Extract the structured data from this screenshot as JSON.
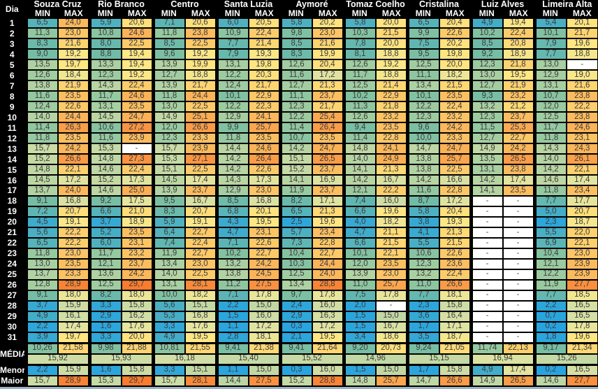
{
  "header": {
    "day_col": "Dia",
    "min_label": "MIN",
    "max_label": "MAX"
  },
  "locations": [
    "Souza Cruz",
    "Rio Branco",
    "Centro",
    "Santa Luzia",
    "Aymoré",
    "Tomaz Coelho",
    "Cristalina",
    "Luiz Alves",
    "Limeira Alta"
  ],
  "days": [
    "1",
    "2",
    "3",
    "4",
    "5",
    "6",
    "7",
    "8",
    "9",
    "10",
    "11",
    "12",
    "13",
    "14",
    "15",
    "16",
    "17",
    "18",
    "19",
    "20",
    "21",
    "22",
    "23",
    "24",
    "25",
    "26",
    "27",
    "28",
    "29",
    "30",
    "31"
  ],
  "rows": [
    [
      [
        "6,5",
        "24,0"
      ],
      [
        "5,9",
        "20,6"
      ],
      [
        "7,1",
        "20,6"
      ],
      [
        "6,0",
        "20,5"
      ],
      [
        "5,8",
        "20,2"
      ],
      [
        "5,8",
        "20,0"
      ],
      [
        "6,5",
        "20,4"
      ],
      [
        "4,9",
        "19,4"
      ],
      [
        "5,4",
        "20,1"
      ]
    ],
    [
      [
        "11,3",
        "23,0"
      ],
      [
        "10,8",
        "24,6"
      ],
      [
        "11,8",
        "23,8"
      ],
      [
        "10,9",
        "22,4"
      ],
      [
        "9,8",
        "23,0"
      ],
      [
        "10,3",
        "21,5"
      ],
      [
        "9,9",
        "22,6"
      ],
      [
        "10,2",
        "22,4"
      ],
      [
        "10,1",
        "21,7"
      ]
    ],
    [
      [
        "8,3",
        "21,6"
      ],
      [
        "8,0",
        "22,5"
      ],
      [
        "8,5",
        "22,5"
      ],
      [
        "7,7",
        "21,4"
      ],
      [
        "8,5",
        "21,6"
      ],
      [
        "7,8",
        "20,0"
      ],
      [
        "7,5",
        "20,2"
      ],
      [
        "8,5",
        "20,8"
      ],
      [
        "7,9",
        "19,6"
      ]
    ],
    [
      [
        "9,0",
        "19,2"
      ],
      [
        "8,8",
        "19,4"
      ],
      [
        "9,6",
        "19,2"
      ],
      [
        "7,9",
        "19,3"
      ],
      [
        "8,3",
        "19,9"
      ],
      [
        "8,1",
        "18,8"
      ],
      [
        "9,5",
        "19,8"
      ],
      [
        "9,2",
        "18,9"
      ],
      [
        "7,7",
        "18,8"
      ]
    ],
    [
      [
        "13,5",
        "19,7"
      ],
      [
        "13,3",
        "19,4"
      ],
      [
        "13,9",
        "19,9"
      ],
      [
        "13,1",
        "19,8"
      ],
      [
        "12,6",
        "20,4"
      ],
      [
        "12,6",
        "19,2"
      ],
      [
        "12,5",
        "20,0"
      ],
      [
        "12,3",
        "21,8"
      ],
      [
        "13,0",
        "-"
      ]
    ],
    [
      [
        "12,6",
        "18,4"
      ],
      [
        "12,3",
        "19,2"
      ],
      [
        "12,7",
        "18,8"
      ],
      [
        "12,2",
        "20,3"
      ],
      [
        "11,6",
        "17,2"
      ],
      [
        "11,7",
        "18,8"
      ],
      [
        "11,1",
        "18,2"
      ],
      [
        "13,0",
        "19,5"
      ],
      [
        "12,9",
        "19,0"
      ]
    ],
    [
      [
        "13,8",
        "21,9"
      ],
      [
        "14,3",
        "22,4"
      ],
      [
        "13,9",
        "21,7"
      ],
      [
        "12,4",
        "21,7"
      ],
      [
        "12,7",
        "21,3"
      ],
      [
        "12,5",
        "21,4"
      ],
      [
        "13,4",
        "21,5"
      ],
      [
        "12,7",
        "21,9"
      ],
      [
        "13,1",
        "21,6"
      ]
    ],
    [
      [
        "11,6",
        "23,5"
      ],
      [
        "11,7",
        "24,6"
      ],
      [
        "11,8",
        "24,4"
      ],
      [
        "10,1",
        "22,9"
      ],
      [
        "11,1",
        "23,7"
      ],
      [
        "10,2",
        "22,9"
      ],
      [
        "10,1",
        "23,5"
      ],
      [
        "9,3",
        "23,2"
      ],
      [
        "10,7",
        "23,8"
      ]
    ],
    [
      [
        "12,4",
        "22,6"
      ],
      [
        "13,1",
        "23,5"
      ],
      [
        "13,0",
        "22,5"
      ],
      [
        "12,2",
        "22,3"
      ],
      [
        "12,3",
        "21,7"
      ],
      [
        "11,3",
        "21,8"
      ],
      [
        "12,2",
        "22,4"
      ],
      [
        "13,2",
        "21,2"
      ],
      [
        "12,0",
        "22,2"
      ]
    ],
    [
      [
        "14,0",
        "24,4"
      ],
      [
        "14,5",
        "24,7"
      ],
      [
        "14,9",
        "25,1"
      ],
      [
        "12,9",
        "24,1"
      ],
      [
        "12,2",
        "25,4"
      ],
      [
        "12,6",
        "23,2"
      ],
      [
        "12,3",
        "23,2"
      ],
      [
        "12,3",
        "23,7"
      ],
      [
        "12,5",
        "23,8"
      ]
    ],
    [
      [
        "11,4",
        "26,3"
      ],
      [
        "10,6",
        "27,2"
      ],
      [
        "12,0",
        "26,6"
      ],
      [
        "9,9",
        "25,7"
      ],
      [
        "11,4",
        "26,4"
      ],
      [
        "9,4",
        "23,5"
      ],
      [
        "9,6",
        "24,2"
      ],
      [
        "11,5",
        "25,3"
      ],
      [
        "11,7",
        "24,6"
      ]
    ],
    [
      [
        "11,8",
        "23,5"
      ],
      [
        "11,6",
        "23,9"
      ],
      [
        "12,3",
        "23,3"
      ],
      [
        "11,8",
        "23,5"
      ],
      [
        "10,7",
        "23,5"
      ],
      [
        "11,4",
        "22,8"
      ],
      [
        "10,0",
        "23,3"
      ],
      [
        "12,7",
        "22,7"
      ],
      [
        "11,8",
        "23,1"
      ]
    ],
    [
      [
        "15,7",
        "24,2"
      ],
      [
        "15,3",
        "-"
      ],
      [
        "15,7",
        "23,9"
      ],
      [
        "14,4",
        "24,6"
      ],
      [
        "14,2",
        "24,7"
      ],
      [
        "14,8",
        "24,1"
      ],
      [
        "14,7",
        "24,7"
      ],
      [
        "14,9",
        "24,2"
      ],
      [
        "14,3",
        "24,3"
      ]
    ],
    [
      [
        "15,2",
        "26,6"
      ],
      [
        "14,8",
        "27,3"
      ],
      [
        "15,3",
        "27,1"
      ],
      [
        "14,2",
        "26,4"
      ],
      [
        "15,1",
        "26,5"
      ],
      [
        "14,0",
        "24,9"
      ],
      [
        "13,8",
        "25,7"
      ],
      [
        "13,5",
        "26,5"
      ],
      [
        "14,0",
        "26,1"
      ]
    ],
    [
      [
        "14,8",
        "22,1"
      ],
      [
        "14,6",
        "22,4"
      ],
      [
        "15,1",
        "22,5"
      ],
      [
        "14,2",
        "22,6"
      ],
      [
        "15,2",
        "23,7"
      ],
      [
        "14,1",
        "21,3"
      ],
      [
        "13,8",
        "22,5"
      ],
      [
        "13,1",
        "23,8"
      ],
      [
        "14,2",
        "22,1"
      ]
    ],
    [
      [
        "14,5",
        "17,2"
      ],
      [
        "15,2",
        "17,3"
      ],
      [
        "14,5",
        "17,4"
      ],
      [
        "14,3",
        "17,3"
      ],
      [
        "14,1",
        "16,9"
      ],
      [
        "14,2",
        "16,7"
      ],
      [
        "14,2",
        "16,6"
      ],
      [
        "14,2",
        "17,4"
      ],
      [
        "14,6",
        "17,4"
      ]
    ],
    [
      [
        "13,7",
        "24,0"
      ],
      [
        "14,6",
        "25,0"
      ],
      [
        "13,9",
        "23,7"
      ],
      [
        "12,9",
        "23,0"
      ],
      [
        "11,9",
        "23,7"
      ],
      [
        "12,1",
        "22,2"
      ],
      [
        "11,6",
        "22,8"
      ],
      [
        "14,1",
        "23,5"
      ],
      [
        "11,8",
        "23,4"
      ]
    ],
    [
      [
        "9,1",
        "16,8"
      ],
      [
        "9,2",
        "17,5"
      ],
      [
        "9,5",
        "16,7"
      ],
      [
        "8,5",
        "16,8"
      ],
      [
        "8,2",
        "17,1"
      ],
      [
        "7,4",
        "16,0"
      ],
      [
        "8,7",
        "17,2"
      ],
      [
        "-",
        "-"
      ],
      [
        "7,7",
        "17,7"
      ]
    ],
    [
      [
        "7,2",
        "20,7"
      ],
      [
        "6,6",
        "21,0"
      ],
      [
        "8,3",
        "20,7"
      ],
      [
        "6,8",
        "20,1"
      ],
      [
        "6,5",
        "21,3"
      ],
      [
        "6,6",
        "19,6"
      ],
      [
        "5,8",
        "20,4"
      ],
      [
        "-",
        "-"
      ],
      [
        "5,0",
        "20,7"
      ]
    ],
    [
      [
        "4,5",
        "19,1"
      ],
      [
        "3,7",
        "18,9"
      ],
      [
        "5,9",
        "19,1"
      ],
      [
        "4,3",
        "19,5"
      ],
      [
        "2,5",
        "19,6"
      ],
      [
        "4,0",
        "18,2"
      ],
      [
        "3,8",
        "19,3"
      ],
      [
        "-",
        "-"
      ],
      [
        "2,3",
        "18,7"
      ]
    ],
    [
      [
        "5,6",
        "22,2"
      ],
      [
        "5,2",
        "23,5"
      ],
      [
        "6,4",
        "22,7"
      ],
      [
        "4,7",
        "23,1"
      ],
      [
        "5,7",
        "23,4"
      ],
      [
        "4,7",
        "21,1"
      ],
      [
        "4,1",
        "21,3"
      ],
      [
        "-",
        "-"
      ],
      [
        "5,5",
        "22,0"
      ]
    ],
    [
      [
        "6,5",
        "22,2"
      ],
      [
        "6,0",
        "23,1"
      ],
      [
        "7,4",
        "22,4"
      ],
      [
        "7,1",
        "22,6"
      ],
      [
        "7,3",
        "22,8"
      ],
      [
        "6,6",
        "21,5"
      ],
      [
        "5,5",
        "21,5"
      ],
      [
        "-",
        "-"
      ],
      [
        "6,9",
        "22,1"
      ]
    ],
    [
      [
        "11,8",
        "23,0"
      ],
      [
        "11,7",
        "23,2"
      ],
      [
        "11,9",
        "22,7"
      ],
      [
        "10,2",
        "22,7"
      ],
      [
        "10,4",
        "22,7"
      ],
      [
        "10,1",
        "22,1"
      ],
      [
        "10,6",
        "22,6"
      ],
      [
        "-",
        "-"
      ],
      [
        "10,4",
        "23,0"
      ]
    ],
    [
      [
        "13,0",
        "23,5"
      ],
      [
        "12,1",
        "23,7"
      ],
      [
        "13,4",
        "23,0"
      ],
      [
        "13,2",
        "24,2"
      ],
      [
        "10,3",
        "24,4"
      ],
      [
        "12,0",
        "23,5"
      ],
      [
        "12,3",
        "23,6"
      ],
      [
        "-",
        "-"
      ],
      [
        "12,1",
        "23,9"
      ]
    ],
    [
      [
        "13,7",
        "23,3"
      ],
      [
        "13,6",
        "24,2"
      ],
      [
        "14,0",
        "22,5"
      ],
      [
        "13,8",
        "24,5"
      ],
      [
        "12,5",
        "24,0"
      ],
      [
        "13,9",
        "23,0"
      ],
      [
        "13,2",
        "22,4"
      ],
      [
        "-",
        "-"
      ],
      [
        "12,2",
        "23,9"
      ]
    ],
    [
      [
        "12,8",
        "28,9"
      ],
      [
        "12,5",
        "29,7"
      ],
      [
        "13,1",
        "28,1"
      ],
      [
        "11,2",
        "27,5"
      ],
      [
        "13,4",
        "28,8"
      ],
      [
        "11,0",
        "25,7"
      ],
      [
        "11,0",
        "26,6"
      ],
      [
        "-",
        "-"
      ],
      [
        "11,9",
        "27,7"
      ]
    ],
    [
      [
        "9,1",
        "18,0"
      ],
      [
        "8,2",
        "18,0"
      ],
      [
        "10,0",
        "18,2"
      ],
      [
        "7,1",
        "17,8"
      ],
      [
        "9,7",
        "17,8"
      ],
      [
        "7,5",
        "17,8"
      ],
      [
        "7,7",
        "18,1"
      ],
      [
        "-",
        "-"
      ],
      [
        "7,7",
        "18,5"
      ]
    ],
    [
      [
        "3,7",
        "15,9"
      ],
      [
        "3,3",
        "15,8"
      ],
      [
        "5,6",
        "15,1"
      ],
      [
        "2,2",
        "15,0"
      ],
      [
        "2,4",
        "16,0"
      ],
      [
        "2,0",
        "-"
      ],
      [
        "2,3",
        "15,8"
      ],
      [
        "-",
        "-"
      ],
      [
        "2,2",
        "16,5"
      ]
    ],
    [
      [
        "4,9",
        "16,1"
      ],
      [
        "2,9",
        "16,2"
      ],
      [
        "5,3",
        "16,8"
      ],
      [
        "1,5",
        "16,0"
      ],
      [
        "2,9",
        "16,3"
      ],
      [
        "1,5",
        "15,0"
      ],
      [
        "3,6",
        "16,4"
      ],
      [
        "-",
        "-"
      ],
      [
        "0,7",
        "16,5"
      ]
    ],
    [
      [
        "2,2",
        "17,4"
      ],
      [
        "1,6",
        "17,6"
      ],
      [
        "3,3",
        "17,6"
      ],
      [
        "1,1",
        "17,2"
      ],
      [
        "0,3",
        "17,2"
      ],
      [
        "1,5",
        "16,7"
      ],
      [
        "1,7",
        "17,1"
      ],
      [
        "-",
        "-"
      ],
      [
        "0,2",
        "17,8"
      ]
    ],
    [
      [
        "3,9",
        "19,7"
      ],
      [
        "3,3",
        "20,0"
      ],
      [
        "4,9",
        "19,5"
      ],
      [
        "2,8",
        "18,1"
      ],
      [
        "2,1",
        "19,5"
      ],
      [
        "3,4",
        "18,6"
      ],
      [
        "3,5",
        "18,7"
      ],
      [
        "-",
        "-"
      ],
      [
        "1,8",
        "19,6"
      ]
    ]
  ],
  "summary": {
    "media_label": "MÉDIA",
    "media": [
      [
        "10,26",
        "21,58"
      ],
      [
        "9,98",
        "21,88"
      ],
      [
        "10,81",
        "21,55"
      ],
      [
        "9,41",
        "21,38"
      ],
      [
        "9,41",
        "21,64"
      ],
      [
        "9,20",
        "20,73"
      ],
      [
        "9,24",
        "21,05"
      ],
      [
        "11,74",
        "22,13"
      ],
      [
        "9,17",
        "21,34"
      ]
    ],
    "media_merged": [
      "15,92",
      "15,93",
      "16,18",
      "15,40",
      "15,52",
      "14,96",
      "15,15",
      "16,94",
      "15,26"
    ],
    "menor_label": "Menor",
    "menor": [
      [
        "2,2",
        "15,9"
      ],
      [
        "1,6",
        "15,8"
      ],
      [
        "3,3",
        "15,1"
      ],
      [
        "1,1",
        "15,0"
      ],
      [
        "0,3",
        "16,0"
      ],
      [
        "1,5",
        "15,0"
      ],
      [
        "1,7",
        "15,8"
      ],
      [
        "4,9",
        "17,4"
      ],
      [
        "0,2",
        "16,5"
      ]
    ],
    "maior_label": "Maior",
    "maior": [
      [
        "15,7",
        "28,9"
      ],
      [
        "15,3",
        "29,7"
      ],
      [
        "15,7",
        "28,1"
      ],
      [
        "14,4",
        "27,5"
      ],
      [
        "15,2",
        "28,8"
      ],
      [
        "14,8",
        "25,7"
      ],
      [
        "14,7",
        "26,6"
      ],
      [
        "14,9",
        "26,5"
      ],
      [
        "14,6",
        "27,7"
      ]
    ]
  },
  "colors": {
    "header_bg": "#000000",
    "header_fg": "#FFFFFF",
    "cell_fg": "#3D3D3D",
    "dash_bg": "#FFFFFF",
    "bottom_strip": "#9FB3C6",
    "scale": [
      {
        "v": 0,
        "c": "#27A4E0"
      },
      {
        "v": 3,
        "c": "#2EA7D9"
      },
      {
        "v": 4.5,
        "c": "#3DABCD"
      },
      {
        "v": 6,
        "c": "#4FB1BF"
      },
      {
        "v": 7.5,
        "c": "#61B7B0"
      },
      {
        "v": 9,
        "c": "#74BDA5"
      },
      {
        "v": 10.5,
        "c": "#86C3A0"
      },
      {
        "v": 12,
        "c": "#99CAA0"
      },
      {
        "v": 13.5,
        "c": "#AED1A2"
      },
      {
        "v": 15,
        "c": "#C2D8A4"
      },
      {
        "v": 16.2,
        "c": "#D2DEA6"
      },
      {
        "v": 17.5,
        "c": "#E4E59E"
      },
      {
        "v": 18.5,
        "c": "#F2E791"
      },
      {
        "v": 19.5,
        "c": "#FFE783"
      },
      {
        "v": 21,
        "c": "#FEDC77"
      },
      {
        "v": 22.5,
        "c": "#FDCB69"
      },
      {
        "v": 24,
        "c": "#FCB95C"
      },
      {
        "v": 25.5,
        "c": "#FBA84F"
      },
      {
        "v": 27,
        "c": "#FA9644"
      },
      {
        "v": 28.5,
        "c": "#F98637"
      },
      {
        "v": 30,
        "c": "#F87A2C"
      }
    ]
  }
}
